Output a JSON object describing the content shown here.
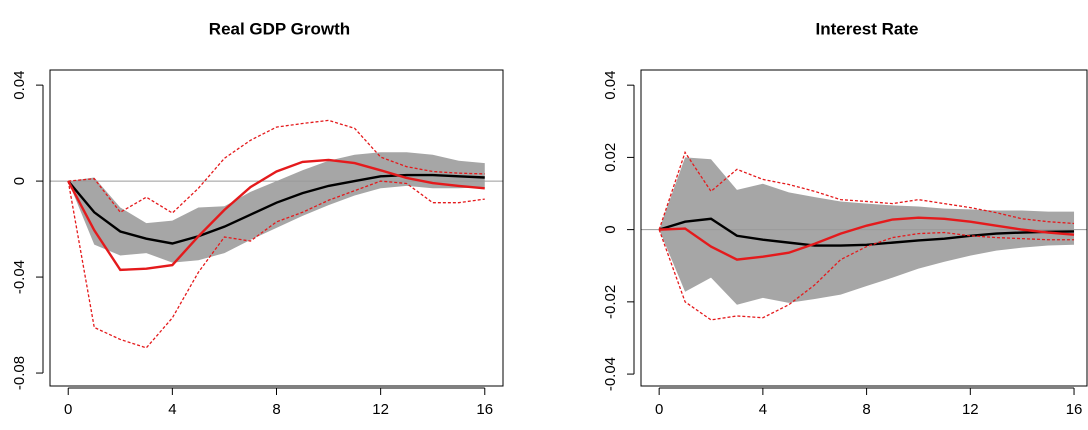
{
  "chart_data": [
    {
      "type": "line",
      "title": "Real GDP Growth",
      "x": [
        0,
        1,
        2,
        3,
        4,
        5,
        6,
        7,
        8,
        9,
        10,
        11,
        12,
        13,
        14,
        15,
        16
      ],
      "xlim": [
        -0.7,
        16.7
      ],
      "xticks": [
        0,
        4,
        8,
        12,
        16
      ],
      "ylim": [
        -0.0854,
        0.0463
      ],
      "yticks": [
        -0.08,
        -0.04,
        0,
        0.04
      ],
      "zero_line": true,
      "band": {
        "color": "#a6a6a6",
        "lower": [
          0,
          -0.0265,
          -0.031,
          -0.03,
          -0.034,
          -0.033,
          -0.03,
          -0.0245,
          -0.0195,
          -0.0145,
          -0.01,
          -0.006,
          -0.003,
          -0.002,
          -0.003,
          -0.003,
          -0.0025
        ],
        "upper": [
          0,
          0.0015,
          -0.011,
          -0.0175,
          -0.0165,
          -0.011,
          -0.0105,
          -0.0045,
          0,
          0.0045,
          0.0085,
          0.011,
          0.012,
          0.012,
          0.011,
          0.0085,
          0.0075
        ]
      },
      "series": [
        {
          "color": "#000000",
          "style": "solid",
          "values": [
            0,
            -0.013,
            -0.021,
            -0.024,
            -0.026,
            -0.023,
            -0.019,
            -0.014,
            -0.009,
            -0.005,
            -0.002,
            0,
            0.002,
            0.0025,
            0.0025,
            0.002,
            0.0015
          ]
        },
        {
          "color": "#e41a1c",
          "style": "solid",
          "values": [
            0,
            -0.0205,
            -0.037,
            -0.0365,
            -0.035,
            -0.023,
            -0.012,
            -0.0025,
            0.004,
            0.008,
            0.0088,
            0.0075,
            0.0045,
            0.0013,
            -0.0008,
            -0.002,
            -0.003
          ]
        },
        {
          "color": "#e41a1c",
          "style": "dashed",
          "values": [
            0,
            0.001,
            -0.013,
            -0.0067,
            -0.0133,
            -0.003,
            0.0095,
            0.017,
            0.0225,
            0.024,
            0.0253,
            0.022,
            0.01,
            0.006,
            0.004,
            0.0033,
            0.003
          ]
        },
        {
          "color": "#e41a1c",
          "style": "dashed",
          "values": [
            0,
            -0.061,
            -0.066,
            -0.0695,
            -0.057,
            -0.038,
            -0.0233,
            -0.025,
            -0.017,
            -0.013,
            -0.008,
            -0.004,
            0,
            -0.001,
            -0.009,
            -0.009,
            -0.0075
          ]
        }
      ]
    },
    {
      "type": "line",
      "title": "Interest Rate",
      "x": [
        0,
        1,
        2,
        3,
        4,
        5,
        6,
        7,
        8,
        9,
        10,
        11,
        12,
        13,
        14,
        15,
        16
      ],
      "xlim": [
        -0.7,
        16.5
      ],
      "xticks": [
        0,
        4,
        8,
        12,
        16
      ],
      "ylim": [
        -0.0433,
        0.0442
      ],
      "yticks": [
        -0.04,
        -0.02,
        0,
        0.02,
        0.04
      ],
      "zero_line": true,
      "band": {
        "color": "#a6a6a6",
        "lower": [
          0,
          -0.0172,
          -0.0133,
          -0.0208,
          -0.0189,
          -0.0203,
          -0.0192,
          -0.018,
          -0.0156,
          -0.0133,
          -0.0108,
          -0.0089,
          -0.0072,
          -0.0058,
          -0.005,
          -0.0044,
          -0.0042
        ],
        "upper": [
          0,
          0.02,
          0.0195,
          0.011,
          0.0127,
          0.0103,
          0.009,
          0.0078,
          0.0072,
          0.0067,
          0.0064,
          0.0058,
          0.0056,
          0.0053,
          0.0053,
          0.005,
          0.005
        ]
      },
      "series": [
        {
          "color": "#000000",
          "style": "solid",
          "values": [
            0,
            0.0022,
            0.003,
            -0.0017,
            -0.0028,
            -0.0036,
            -0.0044,
            -0.0044,
            -0.0042,
            -0.0036,
            -0.003,
            -0.0025,
            -0.0017,
            -0.0011,
            -0.0008,
            -0.0006,
            -0.0005
          ]
        },
        {
          "color": "#e41a1c",
          "style": "solid",
          "values": [
            0,
            0.0003,
            -0.0047,
            -0.0083,
            -0.0075,
            -0.0064,
            -0.0039,
            -0.0011,
            0.0011,
            0.0028,
            0.0033,
            0.003,
            0.0022,
            0.0011,
            0,
            -0.0008,
            -0.0014
          ]
        },
        {
          "color": "#e41a1c",
          "style": "dashed",
          "values": [
            0,
            0.0214,
            0.0106,
            0.0167,
            0.0139,
            0.0125,
            0.0106,
            0.0083,
            0.0078,
            0.0072,
            0.0083,
            0.0072,
            0.0061,
            0.0047,
            0.003,
            0.0022,
            0.0017
          ]
        },
        {
          "color": "#e41a1c",
          "style": "dashed",
          "values": [
            0,
            -0.02,
            -0.025,
            -0.0239,
            -0.0244,
            -0.0208,
            -0.0153,
            -0.0083,
            -0.0047,
            -0.0022,
            -0.0011,
            -0.0008,
            -0.0017,
            -0.0022,
            -0.0025,
            -0.0028,
            -0.0028
          ]
        }
      ]
    }
  ]
}
